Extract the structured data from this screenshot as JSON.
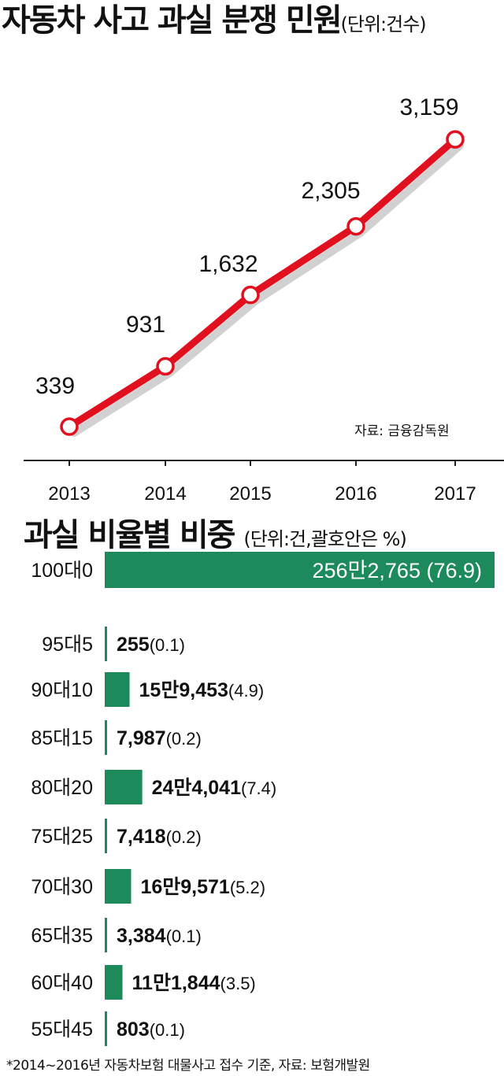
{
  "chart_data": [
    {
      "type": "line",
      "title": "자동차 사고 과실 분쟁 민원",
      "unit": "(단위:건수)",
      "x": [
        "2013",
        "2014",
        "2015",
        "2016",
        "2017"
      ],
      "values": [
        339,
        931,
        1632,
        2305,
        3159
      ],
      "data_labels": [
        "339",
        "931",
        "1,632",
        "2,305",
        "3,159"
      ],
      "line_color": "#e0101e",
      "source": "자료: 금융감독원",
      "grid": false
    },
    {
      "type": "bar",
      "orientation": "horizontal",
      "title": "과실 비율별 비중",
      "unit": "(단위:건,괄호안은 %)",
      "categories": [
        "100대0",
        "95대5",
        "90대10",
        "85대15",
        "80대20",
        "75대25",
        "70대30",
        "65대35",
        "60대40",
        "55대45"
      ],
      "counts": [
        "256만2,765",
        "255",
        "15만9,453",
        "7,987",
        "24만4,041",
        "7,418",
        "16만9,571",
        "3,384",
        "11만1,844",
        "803"
      ],
      "values": [
        76.9,
        0.1,
        4.9,
        0.2,
        7.4,
        0.2,
        5.2,
        0.1,
        3.5,
        0.1
      ],
      "percent_labels": [
        "(76.9)",
        "(0.1)",
        "(4.9)",
        "(0.2)",
        "(7.4)",
        "(0.2)",
        "(5.2)",
        "(0.1)",
        "(3.5)",
        "(0.1)"
      ],
      "bar_color": "#1d8a5b",
      "footnote": "*2014~2016년 자동차보험 대물사고 접수 기준, 자료: 보험개발원"
    }
  ]
}
